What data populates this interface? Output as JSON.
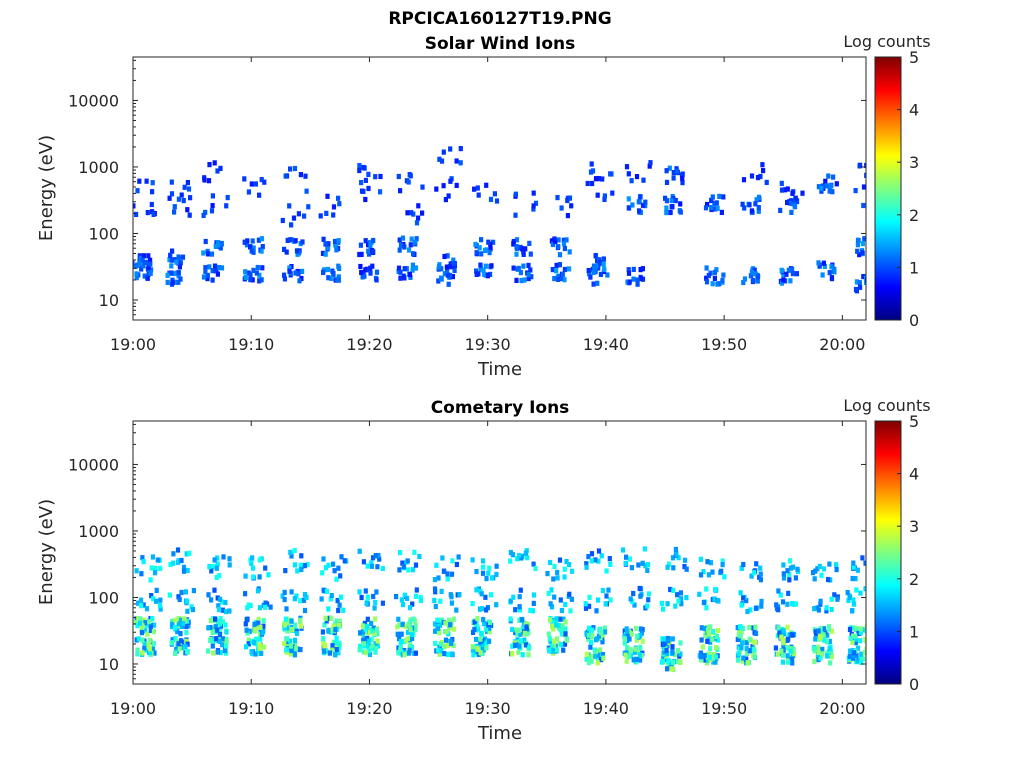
{
  "figure": {
    "title_line1": "RPCICA160127T19.PNG",
    "colorscale": [
      "#00007f",
      "#0000ff",
      "#007fff",
      "#00ffff",
      "#7fff7f",
      "#ffff00",
      "#ff7f00",
      "#ff0000",
      "#7f0000"
    ]
  },
  "chart_data": [
    {
      "type": "heatmap",
      "title": "Solar Wind Ions",
      "xlabel": "Time",
      "ylabel": "Energy (eV)",
      "colorbar_label": "Log counts",
      "xlim": [
        "19:00",
        "20:02"
      ],
      "x_ticks": [
        "19:00",
        "19:10",
        "19:20",
        "19:30",
        "19:40",
        "19:50",
        "20:00"
      ],
      "y_scale": "log",
      "ylim": [
        5,
        45000
      ],
      "y_ticks": [
        "10",
        "100",
        "1000",
        "10000"
      ],
      "clim": [
        0,
        5
      ],
      "c_ticks": [
        "0",
        "1",
        "2",
        "3",
        "4",
        "5"
      ],
      "bands": [
        {
          "t": 0.0,
          "e": [
            28,
            45,
            200,
            500
          ]
        },
        {
          "t": 2.8,
          "e": [
            25,
            45,
            300,
            500
          ]
        },
        {
          "t": 6.0,
          "e": [
            28,
            70,
            300,
            900
          ]
        },
        {
          "t": 9.5,
          "e": [
            28,
            70,
            500
          ]
        },
        {
          "t": 12.8,
          "e": [
            28,
            70,
            200,
            700
          ]
        },
        {
          "t": 16.0,
          "e": [
            28,
            70,
            300
          ]
        },
        {
          "t": 19.2,
          "e": [
            28,
            70,
            500,
            1000
          ]
        },
        {
          "t": 22.5,
          "e": [
            28,
            70,
            200,
            700
          ]
        },
        {
          "t": 25.8,
          "e": [
            25,
            40,
            500,
            1500
          ]
        },
        {
          "t": 29.0,
          "e": [
            28,
            70,
            500
          ]
        },
        {
          "t": 32.2,
          "e": [
            28,
            70,
            300
          ]
        },
        {
          "t": 35.4,
          "e": [
            28,
            70,
            300
          ]
        },
        {
          "t": 38.6,
          "e": [
            25,
            40,
            500,
            1000
          ]
        },
        {
          "t": 41.8,
          "e": [
            25,
            300,
            900
          ]
        },
        {
          "t": 45.0,
          "e": [
            300,
            800
          ]
        },
        {
          "t": 48.5,
          "e": [
            25,
            300
          ]
        },
        {
          "t": 51.6,
          "e": [
            25,
            300,
            800
          ]
        },
        {
          "t": 54.8,
          "e": [
            25,
            300,
            600
          ]
        },
        {
          "t": 58.0,
          "e": [
            30,
            600
          ]
        },
        {
          "t": 61.2,
          "e": [
            20,
            70,
            400,
            800
          ]
        }
      ],
      "intensity": [
        0.7,
        1.4
      ]
    },
    {
      "type": "heatmap",
      "title": "Cometary Ions",
      "xlabel": "Time",
      "ylabel": "Energy (eV)",
      "colorbar_label": "Log counts",
      "xlim": [
        "19:00",
        "20:02"
      ],
      "x_ticks": [
        "19:00",
        "19:10",
        "19:20",
        "19:30",
        "19:40",
        "19:50",
        "20:00"
      ],
      "y_scale": "log",
      "ylim": [
        5,
        45000
      ],
      "y_ticks": [
        "10",
        "100",
        "1000",
        "10000"
      ],
      "clim": [
        0,
        5
      ],
      "c_ticks": [
        "0",
        "1",
        "2",
        "3",
        "4",
        "5"
      ],
      "bands": [
        {
          "t": 0.3,
          "e": [
            20,
            40,
            100,
            300
          ]
        },
        {
          "t": 3.2,
          "e": [
            20,
            40,
            100,
            400
          ]
        },
        {
          "t": 6.4,
          "e": [
            20,
            40,
            100,
            300
          ]
        },
        {
          "t": 9.6,
          "e": [
            20,
            40,
            100,
            300
          ]
        },
        {
          "t": 12.8,
          "e": [
            20,
            40,
            100,
            400
          ]
        },
        {
          "t": 16.0,
          "e": [
            20,
            40,
            100,
            300
          ]
        },
        {
          "t": 19.2,
          "e": [
            20,
            40,
            100,
            400
          ]
        },
        {
          "t": 22.4,
          "e": [
            20,
            40,
            100,
            400
          ]
        },
        {
          "t": 25.6,
          "e": [
            20,
            40,
            100,
            300
          ]
        },
        {
          "t": 28.8,
          "e": [
            20,
            40,
            100,
            300
          ]
        },
        {
          "t": 32.0,
          "e": [
            20,
            40,
            100,
            400
          ]
        },
        {
          "t": 35.2,
          "e": [
            20,
            40,
            100,
            300
          ]
        },
        {
          "t": 38.4,
          "e": [
            15,
            30,
            100,
            400
          ]
        },
        {
          "t": 41.6,
          "e": [
            15,
            30,
            100,
            400
          ]
        },
        {
          "t": 44.8,
          "e": [
            12,
            20,
            100,
            400
          ]
        },
        {
          "t": 48.0,
          "e": [
            15,
            30,
            100,
            300
          ]
        },
        {
          "t": 51.2,
          "e": [
            15,
            30,
            100,
            300
          ]
        },
        {
          "t": 54.4,
          "e": [
            15,
            30,
            100,
            300
          ]
        },
        {
          "t": 57.6,
          "e": [
            15,
            30,
            100,
            300
          ]
        },
        {
          "t": 60.6,
          "e": [
            15,
            30,
            100,
            300
          ]
        }
      ],
      "intensity": [
        1.0,
        2.8
      ]
    }
  ]
}
